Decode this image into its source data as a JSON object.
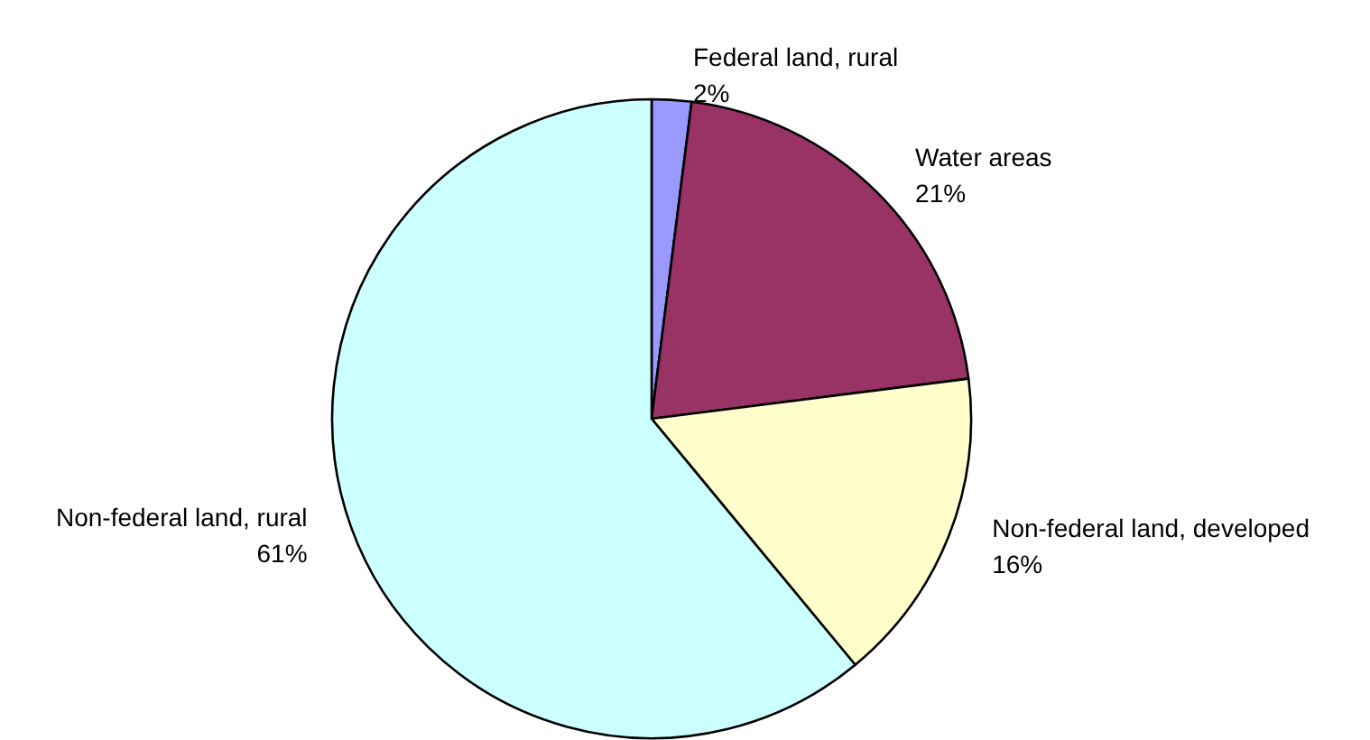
{
  "chart_data": {
    "type": "pie",
    "categories": [
      "Federal land, rural",
      "Water areas",
      "Non-federal land, developed",
      "Non-federal land, rural"
    ],
    "values": [
      2,
      21,
      16,
      61
    ],
    "colors": [
      "#9999ff",
      "#993366",
      "#ffffcc",
      "#ccffff"
    ],
    "value_labels": [
      "2%",
      "21%",
      "16%",
      "61%"
    ],
    "legend": false
  }
}
